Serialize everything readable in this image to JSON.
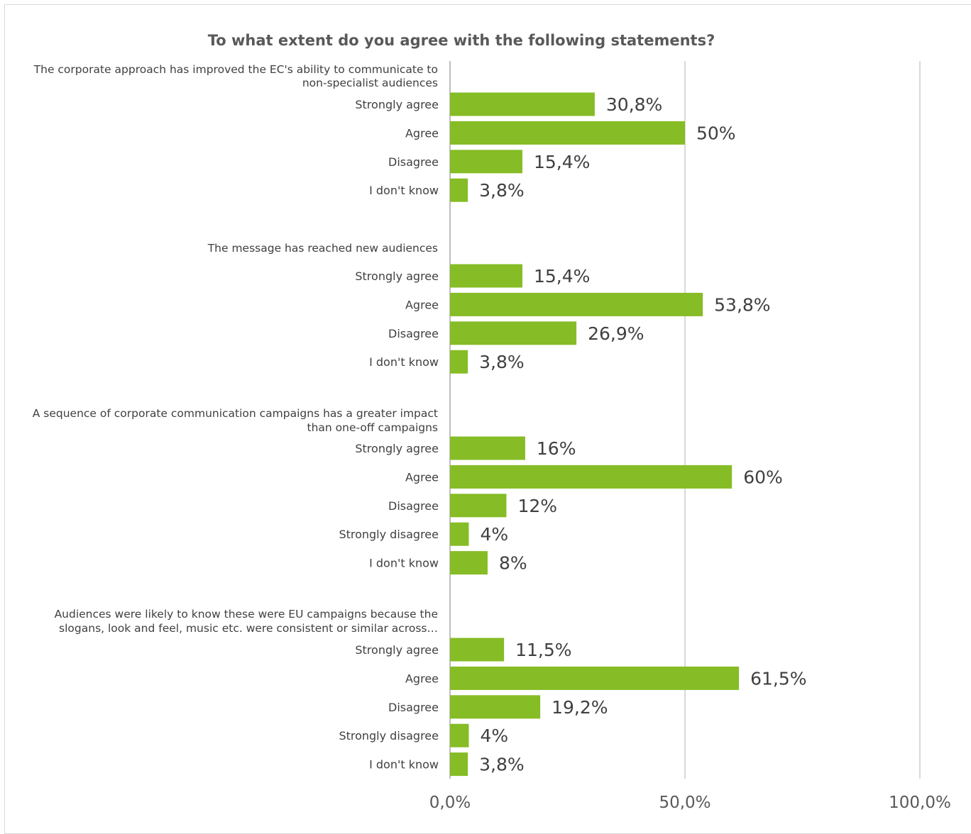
{
  "chart_data": {
    "type": "bar",
    "orientation": "horizontal",
    "title": "To what extent do you agree with the following statements?",
    "xlabel": "",
    "ylabel": "",
    "xlim": [
      0,
      100
    ],
    "x_ticks": [
      0,
      50,
      100
    ],
    "x_tick_labels": [
      "0,0%",
      "50,0%",
      "100,0%"
    ],
    "grid": true,
    "legend": "none",
    "bar_color": "#86bc25",
    "groups": [
      {
        "statement": "The corporate approach has improved the EC's ability to communicate to non-specialist audiences",
        "statement_lines": [
          "The corporate approach has improved the EC's ability to communicate to",
          "non-specialist audiences"
        ],
        "categories": [
          "Strongly agree",
          "Agree",
          "Disagree",
          "I don't know"
        ],
        "values": [
          30.8,
          50,
          15.4,
          3.8
        ],
        "value_labels": [
          "30,8%",
          "50%",
          "15,4%",
          "3,8%"
        ]
      },
      {
        "statement": "The message has reached new audiences",
        "statement_lines": [
          "The message has reached new audiences"
        ],
        "categories": [
          "Strongly agree",
          "Agree",
          "Disagree",
          "I don't know"
        ],
        "values": [
          15.4,
          53.8,
          26.9,
          3.8
        ],
        "value_labels": [
          "15,4%",
          "53,8%",
          "26,9%",
          "3,8%"
        ]
      },
      {
        "statement": "A sequence of corporate communication campaigns has a greater impact than one-off campaigns",
        "statement_lines": [
          "A sequence of corporate communication campaigns has a greater impact",
          "than one-off campaigns"
        ],
        "categories": [
          "Strongly agree",
          "Agree",
          "Disagree",
          "Strongly disagree",
          "I don't know"
        ],
        "values": [
          16,
          60,
          12,
          4,
          8
        ],
        "value_labels": [
          "16%",
          "60%",
          "12%",
          "4%",
          "8%"
        ]
      },
      {
        "statement": "Audiences were likely to know these were EU campaigns because the slogans, look and feel, music etc. were consistent or similar across…",
        "statement_lines": [
          "Audiences were likely to know these were EU campaigns because the",
          "slogans, look and feel, music etc. were consistent or similar across…"
        ],
        "categories": [
          "Strongly agree",
          "Agree",
          "Disagree",
          "Strongly disagree",
          "I don't know"
        ],
        "values": [
          11.5,
          61.5,
          19.2,
          4,
          3.8
        ],
        "value_labels": [
          "11,5%",
          "61,5%",
          "19,2%",
          "4%",
          "3,8%"
        ]
      }
    ]
  }
}
